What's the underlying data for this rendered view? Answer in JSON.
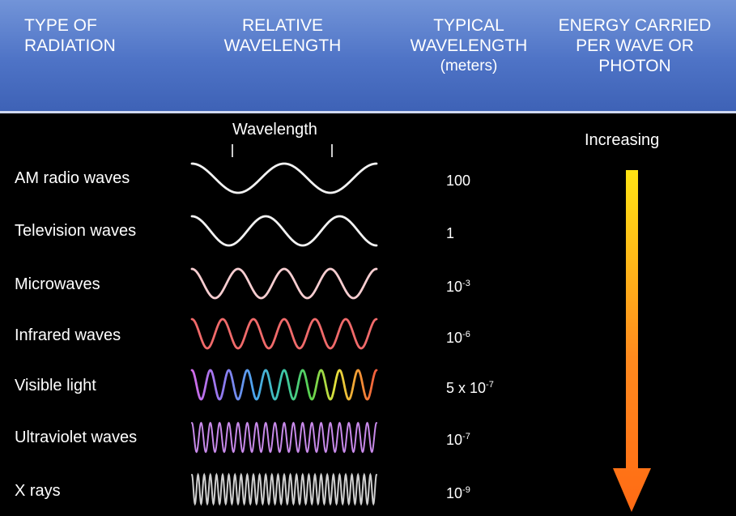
{
  "header": {
    "type_col": [
      "TYPE OF",
      "RADIATION"
    ],
    "relative_col": [
      "RELATIVE",
      "WAVELENGTH"
    ],
    "typical_col": [
      "TYPICAL",
      "WAVELENGTH",
      "(meters)"
    ],
    "energy_col": [
      "ENERGY CARRIED",
      "PER WAVE OR",
      "PHOTON"
    ],
    "header_color": "#5275c8"
  },
  "wavelength_marker_label": "Wavelength",
  "energy_label": "Increasing",
  "arrow_colors": [
    "#ffe414",
    "#ff8a1e",
    "#ff6a14"
  ],
  "rows": [
    {
      "name": "AM radio waves",
      "value_base": "100",
      "value_exp": "",
      "cycles": 2,
      "color": "#f2f2f2"
    },
    {
      "name": "Television waves",
      "value_base": "1",
      "value_exp": "",
      "cycles": 2.5,
      "color": "#f2f2f2"
    },
    {
      "name": "Microwaves",
      "value_base": "10",
      "value_exp": "-3",
      "cycles": 4,
      "color": "#f7cdd0"
    },
    {
      "name": "Infrared waves",
      "value_base": "10",
      "value_exp": "-6",
      "cycles": 6,
      "color": "#f06a6a"
    },
    {
      "name": "Visible light",
      "value_base": "5 x 10",
      "value_exp": "-7",
      "cycles": 10,
      "color": "spectrum"
    },
    {
      "name": "Ultraviolet waves",
      "value_base": "10",
      "value_exp": "-7",
      "cycles": 20,
      "color": "#c88aea"
    },
    {
      "name": "X rays",
      "value_base": "10",
      "value_exp": "-9",
      "cycles": 30,
      "color": "#cfcfcf"
    }
  ]
}
